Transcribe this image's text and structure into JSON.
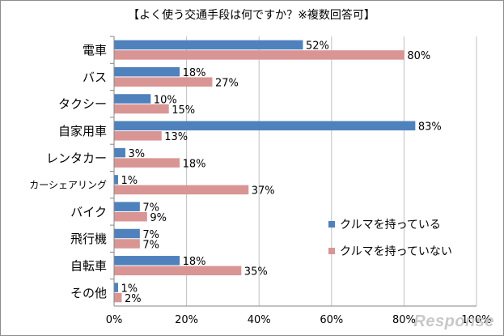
{
  "chart_data": {
    "type": "bar",
    "orientation": "horizontal",
    "title": "【よく使う交通手段は何ですか？※複数回答可】",
    "categories": [
      "電車",
      "バス",
      "タクシー",
      "自家用車",
      "レンタカー",
      "カーシェアリング",
      "バイク",
      "飛行機",
      "自転車",
      "その他"
    ],
    "series": [
      {
        "name": "クルマを持っている",
        "color": "#4f81bd",
        "values": [
          52,
          18,
          10,
          83,
          3,
          1,
          7,
          7,
          18,
          1
        ]
      },
      {
        "name": "クルマを持っていない",
        "color": "#d99594",
        "values": [
          80,
          27,
          15,
          13,
          18,
          37,
          9,
          7,
          35,
          2
        ]
      }
    ],
    "xlim": [
      0,
      100
    ],
    "xticks": [
      "0%",
      "20%",
      "40%",
      "60%",
      "80%",
      "100%"
    ],
    "xlabel": "",
    "ylabel": "",
    "legend_position": "right",
    "value_suffix": "%"
  },
  "watermark": "Response"
}
